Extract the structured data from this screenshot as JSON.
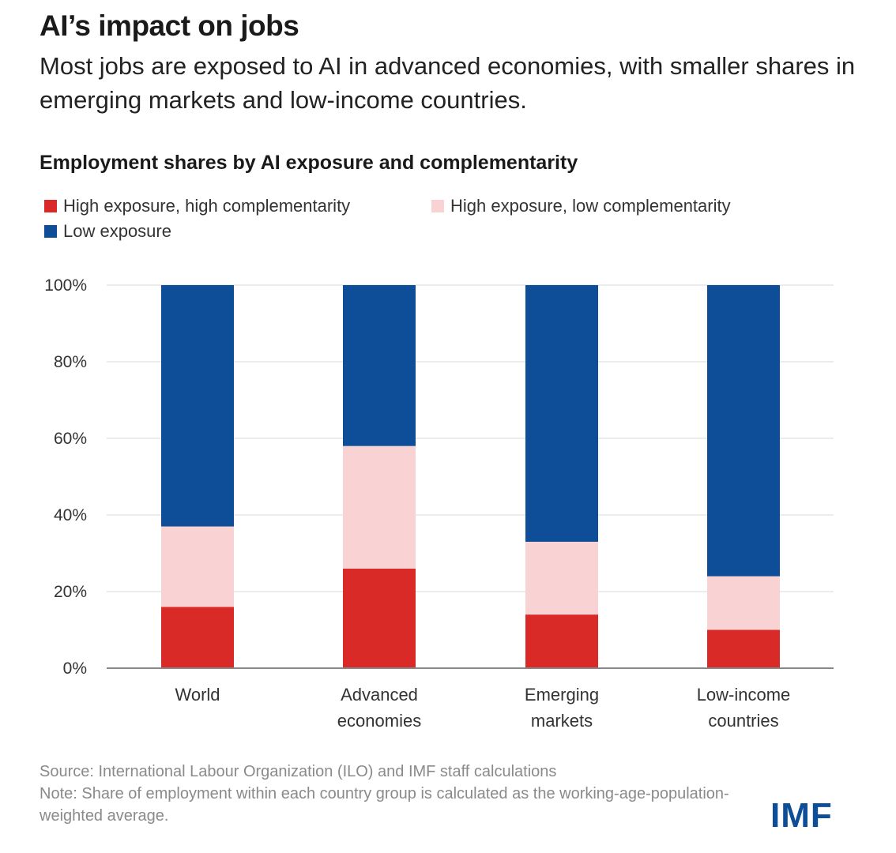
{
  "header": {
    "title": "AI’s impact on jobs",
    "subtitle": "Most jobs are exposed to AI in advanced economies, with smaller shares in emerging markets and low-income countries."
  },
  "chart_data": {
    "type": "bar",
    "stacked": true,
    "title": "Employment shares by AI exposure and complementarity",
    "categories": [
      [
        "World"
      ],
      [
        "Advanced",
        "economies"
      ],
      [
        "Emerging",
        "markets"
      ],
      [
        "Low-income",
        "countries"
      ]
    ],
    "series": [
      {
        "name": "High exposure, high complementarity",
        "color": "#d92a27",
        "values": [
          16,
          26,
          14,
          10
        ]
      },
      {
        "name": "High exposure, low complementarity",
        "color": "#f9d3d3",
        "values": [
          21,
          32,
          19,
          14
        ]
      },
      {
        "name": "Low exposure",
        "color": "#0e4d98",
        "values": [
          63,
          42,
          67,
          76
        ]
      }
    ],
    "yticks": [
      "0%",
      "20%",
      "40%",
      "60%",
      "80%",
      "100%"
    ],
    "ylim": [
      0,
      100
    ],
    "grid": true,
    "legend_placement": "top-left"
  },
  "footer": {
    "source": "Source: International Labour Organization (ILO) and IMF staff calculations",
    "note": "Note: Share of employment within each country group is calculated as the working-age-population-weighted average.",
    "logo": "IMF"
  }
}
